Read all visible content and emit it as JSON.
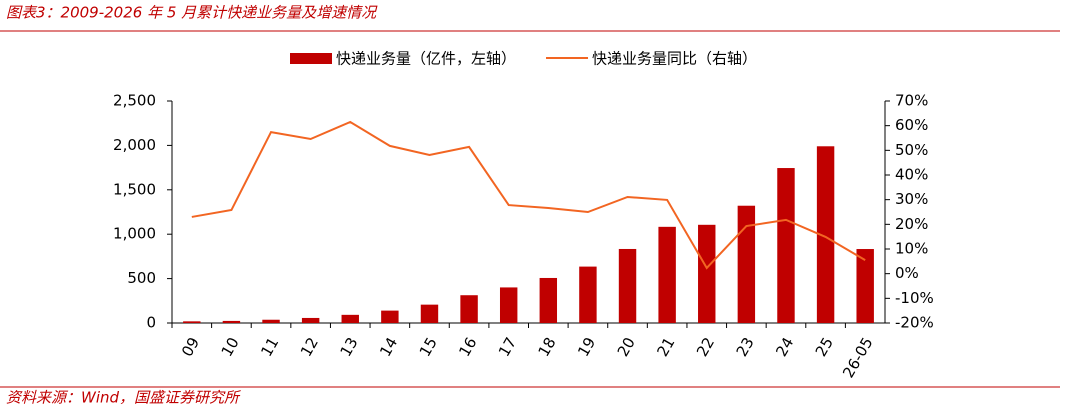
{
  "chart_data": {
    "type": "bar-line",
    "title": "图表3：2009-2026 年 5 月累计快递业务量及增速情况",
    "source": "资料来源：Wind，国盛证券研究所",
    "categories": [
      "09",
      "10",
      "11",
      "12",
      "13",
      "14",
      "15",
      "16",
      "17",
      "18",
      "19",
      "20",
      "21",
      "22",
      "23",
      "24",
      "25",
      "26-05"
    ],
    "series": [
      {
        "name": "快递业务量（亿件，左轴）",
        "color": "#c00000",
        "type": "bar",
        "values": [
          18.6,
          23.4,
          36.7,
          56.9,
          91.9,
          139.6,
          206.7,
          312.8,
          400.6,
          507.1,
          635.2,
          833.6,
          1083,
          1105.8,
          1320.7,
          1745,
          1990,
          833
        ]
      },
      {
        "name": "快递业务量同比（右轴）",
        "color": "#f26522",
        "type": "line",
        "axis": "y2",
        "values": [
          23.0,
          25.8,
          57.4,
          54.6,
          61.5,
          51.8,
          48.1,
          51.4,
          27.8,
          26.6,
          25.0,
          31.1,
          29.9,
          2.3,
          19.3,
          21.8,
          14.9,
          5.5
        ]
      }
    ],
    "ylim": [
      0,
      2500
    ],
    "yticks": [
      0,
      500,
      {
        "value": 1000,
        "label": "1,000"
      },
      {
        "value": 1500,
        "label": "1,500"
      },
      {
        "value": 2000,
        "label": "2,000"
      },
      {
        "value": 2500,
        "label": "2,500"
      }
    ],
    "y2lim": [
      -20,
      70
    ],
    "y2ticks": [
      {
        "value": -20,
        "label": "-20%"
      },
      {
        "value": -10,
        "label": "-10%"
      },
      {
        "value": 0,
        "label": "0%"
      },
      {
        "value": 10,
        "label": "10%"
      },
      {
        "value": 20,
        "label": "20%"
      },
      {
        "value": 30,
        "label": "30%"
      },
      {
        "value": 40,
        "label": "40%"
      },
      {
        "value": 50,
        "label": "50%"
      },
      {
        "value": 60,
        "label": "60%"
      },
      {
        "value": 70,
        "label": "70%"
      }
    ]
  }
}
